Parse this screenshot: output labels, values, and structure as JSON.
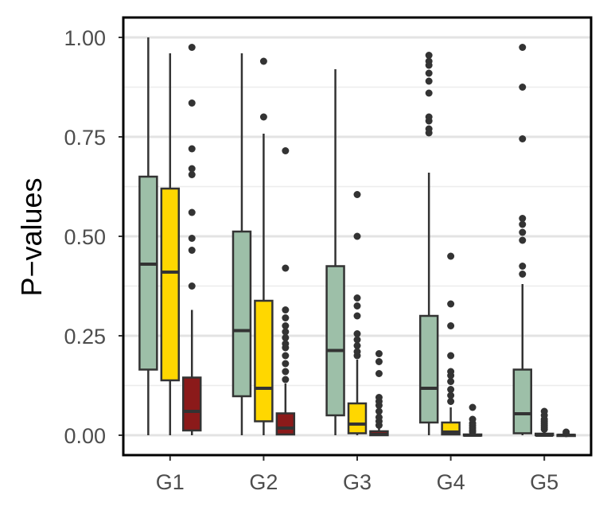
{
  "chart_data": {
    "type": "boxplot",
    "title": "",
    "xlabel": "",
    "ylabel": "P−values",
    "ylim": [
      -0.05,
      1.05
    ],
    "y_ticks": [
      0.0,
      0.25,
      0.5,
      0.75,
      1.0
    ],
    "y_tick_labels": [
      "0.00",
      "0.25",
      "0.50",
      "0.75",
      "1.00"
    ],
    "categories": [
      "G1",
      "G2",
      "G3",
      "G4",
      "G5"
    ],
    "grid": true,
    "legend": "none",
    "series": [
      {
        "color": "#9dbfa8",
        "boxes": [
          {
            "min": 0.0,
            "q1": 0.165,
            "median": 0.43,
            "q3": 0.65,
            "max": 1.0,
            "outliers": []
          },
          {
            "min": 0.0,
            "q1": 0.098,
            "median": 0.263,
            "q3": 0.512,
            "max": 0.96,
            "outliers": []
          },
          {
            "min": 0.0,
            "q1": 0.05,
            "median": 0.213,
            "q3": 0.425,
            "max": 0.92,
            "outliers": []
          },
          {
            "min": 0.0,
            "q1": 0.032,
            "median": 0.118,
            "q3": 0.3,
            "max": 0.66,
            "outliers": [
              0.76,
              0.77,
              0.79,
              0.8,
              0.86,
              0.89,
              0.91,
              0.93,
              0.94,
              0.955
            ]
          },
          {
            "min": 0.0,
            "q1": 0.005,
            "median": 0.054,
            "q3": 0.165,
            "max": 0.38,
            "outliers": [
              0.405,
              0.425,
              0.49,
              0.51,
              0.53,
              0.545,
              0.745,
              0.875,
              0.975
            ]
          }
        ]
      },
      {
        "color": "#ffd700",
        "boxes": [
          {
            "min": 0.0,
            "q1": 0.138,
            "median": 0.41,
            "q3": 0.62,
            "max": 0.96,
            "outliers": []
          },
          {
            "min": 0.0,
            "q1": 0.035,
            "median": 0.118,
            "q3": 0.338,
            "max": 0.758,
            "outliers": [
              0.8,
              0.94
            ]
          },
          {
            "min": 0.0,
            "q1": 0.005,
            "median": 0.028,
            "q3": 0.08,
            "max": 0.19,
            "outliers": [
              0.2,
              0.21,
              0.225,
              0.24,
              0.255,
              0.3,
              0.325,
              0.345,
              0.5,
              0.605
            ]
          },
          {
            "min": 0.0,
            "q1": 0.002,
            "median": 0.008,
            "q3": 0.032,
            "max": 0.07,
            "outliers": [
              0.085,
              0.1,
              0.115,
              0.135,
              0.15,
              0.16,
              0.2,
              0.275,
              0.33,
              0.45
            ]
          },
          {
            "min": 0.0,
            "q1": 0.0,
            "median": 0.0,
            "q3": 0.004,
            "max": 0.01,
            "outliers": [
              0.015,
              0.02,
              0.025,
              0.03,
              0.035,
              0.04,
              0.05,
              0.06
            ]
          }
        ]
      },
      {
        "color": "#8b1a1a",
        "boxes": [
          {
            "min": 0.0,
            "q1": 0.012,
            "median": 0.06,
            "q3": 0.145,
            "max": 0.315,
            "outliers": [
              0.375,
              0.465,
              0.495,
              0.56,
              0.655,
              0.67,
              0.72,
              0.835,
              0.975
            ]
          },
          {
            "min": 0.0,
            "q1": 0.002,
            "median": 0.018,
            "q3": 0.055,
            "max": 0.13,
            "outliers": [
              0.14,
              0.16,
              0.18,
              0.2,
              0.22,
              0.23,
              0.245,
              0.26,
              0.275,
              0.295,
              0.315,
              0.42,
              0.715
            ]
          },
          {
            "min": 0.0,
            "q1": 0.0,
            "median": 0.002,
            "q3": 0.01,
            "max": 0.02,
            "outliers": [
              0.025,
              0.035,
              0.045,
              0.06,
              0.075,
              0.085,
              0.095,
              0.155,
              0.185,
              0.205
            ]
          },
          {
            "min": 0.0,
            "q1": 0.0,
            "median": 0.0,
            "q3": 0.002,
            "max": 0.005,
            "outliers": [
              0.008,
              0.012,
              0.018,
              0.024,
              0.03,
              0.04,
              0.07
            ]
          },
          {
            "min": 0.0,
            "q1": 0.0,
            "median": 0.0,
            "q3": 0.001,
            "max": 0.002,
            "outliers": [
              0.004,
              0.008
            ]
          }
        ]
      }
    ]
  }
}
